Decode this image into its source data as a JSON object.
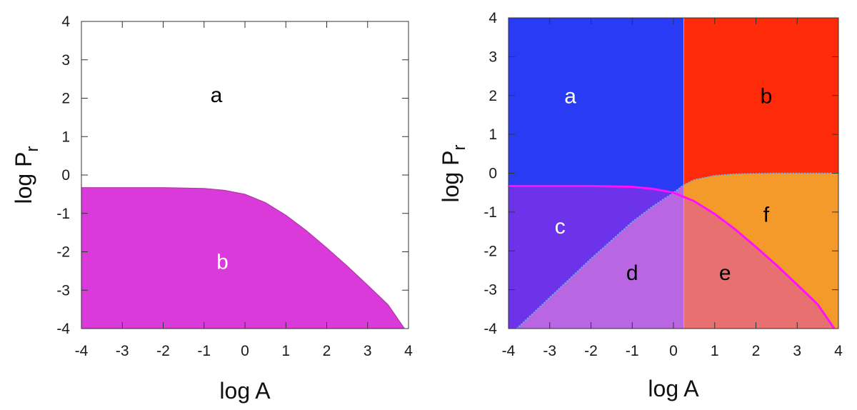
{
  "chart_data": [
    {
      "type": "area",
      "title": "",
      "xlabel": "log A",
      "ylabel_base": "log P",
      "ylabel_sub": "r",
      "xlim": [
        -4,
        4
      ],
      "ylim": [
        -4,
        4
      ],
      "xticks": [
        "-4",
        "-3",
        "-2",
        "-1",
        "0",
        "1",
        "2",
        "3",
        "4"
      ],
      "yticks": [
        "4",
        "3",
        "2",
        "1",
        "0",
        "-1",
        "-2",
        "-3",
        "-4"
      ],
      "boundary": {
        "x": [
          -4,
          -3,
          -2,
          -1,
          -0.5,
          0,
          0.5,
          1,
          1.5,
          2,
          2.5,
          3,
          3.5,
          3.9
        ],
        "y": [
          -0.33,
          -0.33,
          -0.33,
          -0.35,
          -0.4,
          -0.5,
          -0.72,
          -1.05,
          -1.45,
          -1.9,
          -2.37,
          -2.87,
          -3.38,
          -4.0
        ]
      },
      "regions": [
        {
          "label": "a",
          "color": "#ffffff",
          "label_x": -0.7,
          "label_y": 1.9,
          "text_color": "#000000"
        },
        {
          "label": "b",
          "color": "#db3adb",
          "label_x": -0.55,
          "label_y": -2.45,
          "text_color": "#ffffff"
        }
      ]
    },
    {
      "type": "area",
      "title": "",
      "xlabel": "log A",
      "ylabel_base": "log P",
      "ylabel_sub": "r",
      "xlim": [
        -4,
        4
      ],
      "ylim": [
        -4,
        4
      ],
      "xticks": [
        "-4",
        "-3",
        "-2",
        "-1",
        "0",
        "1",
        "2",
        "3",
        "4"
      ],
      "yticks": [
        "4",
        "3",
        "2",
        "1",
        "0",
        "-1",
        "-2",
        "-3",
        "-4"
      ],
      "vertical_divider_x": 0.25,
      "upper_boundary": {
        "x": [
          -3.8,
          -3,
          -2,
          -1,
          -0.5,
          0,
          0.25,
          0.5,
          1,
          1.5,
          2,
          2.5,
          3,
          4
        ],
        "y": [
          -4.0,
          -3.2,
          -2.2,
          -1.25,
          -0.85,
          -0.5,
          -0.3,
          -0.17,
          -0.06,
          -0.02,
          -0.01,
          0.0,
          0.0,
          0.0
        ]
      },
      "curve": {
        "name": "magenta boundary",
        "color": "#ff11ff",
        "x": [
          -4,
          -3,
          -2,
          -1,
          -0.5,
          0,
          0.5,
          1,
          1.5,
          2,
          2.5,
          3,
          3.5,
          3.9
        ],
        "y": [
          -0.33,
          -0.33,
          -0.33,
          -0.35,
          -0.4,
          -0.5,
          -0.72,
          -1.05,
          -1.45,
          -1.9,
          -2.37,
          -2.87,
          -3.38,
          -4.0
        ]
      },
      "regions": [
        {
          "label": "a",
          "color": "#2a3bf5",
          "label_x": -2.5,
          "label_y": 1.8,
          "text_color": "#ffffff"
        },
        {
          "label": "b",
          "color": "#ff2a0a",
          "label_x": 2.25,
          "label_y": 1.8,
          "text_color": "#000000"
        },
        {
          "label": "c",
          "color": "#6d33ea",
          "label_x": -2.75,
          "label_y": -1.55,
          "text_color": "#ffffff"
        },
        {
          "label": "d",
          "color": "#b966e2",
          "label_x": -1.0,
          "label_y": -2.75,
          "text_color": "#000000"
        },
        {
          "label": "e",
          "color": "#e87070",
          "label_x": 1.25,
          "label_y": -2.75,
          "text_color": "#000000"
        },
        {
          "label": "f",
          "color": "#f39a2a",
          "label_x": 2.25,
          "label_y": -1.25,
          "text_color": "#000000"
        }
      ]
    }
  ]
}
